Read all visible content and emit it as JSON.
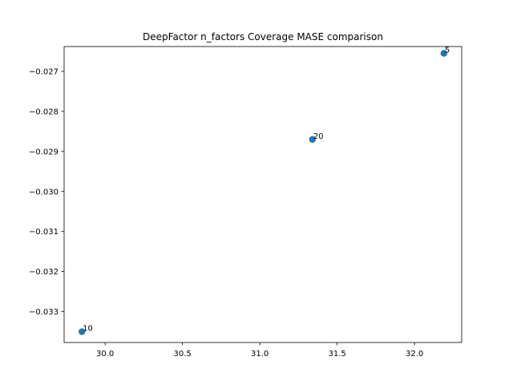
{
  "chart_data": {
    "type": "scatter",
    "title": "DeepFactor n_factors Coverage MASE comparison",
    "xlabel": "",
    "ylabel": "",
    "xlim": [
      29.735,
      32.305
    ],
    "ylim": [
      -0.03377,
      -0.02638
    ],
    "x_ticks": [
      30.0,
      30.5,
      31.0,
      31.5,
      32.0
    ],
    "x_tick_labels": [
      "30.0",
      "30.5",
      "31.0",
      "31.5",
      "32.0"
    ],
    "y_ticks": [
      -0.033,
      -0.032,
      -0.031,
      -0.03,
      -0.029,
      -0.028,
      -0.027
    ],
    "y_tick_labels": [
      "−0.033",
      "−0.032",
      "−0.031",
      "−0.030",
      "−0.029",
      "−0.028",
      "−0.027"
    ],
    "points": [
      {
        "x": 32.19,
        "y": -0.02655,
        "label": "5"
      },
      {
        "x": 31.34,
        "y": -0.0287,
        "label": "20"
      },
      {
        "x": 29.85,
        "y": -0.0335,
        "label": "10"
      }
    ],
    "grid": false,
    "marker_color": "#1f77b4"
  }
}
